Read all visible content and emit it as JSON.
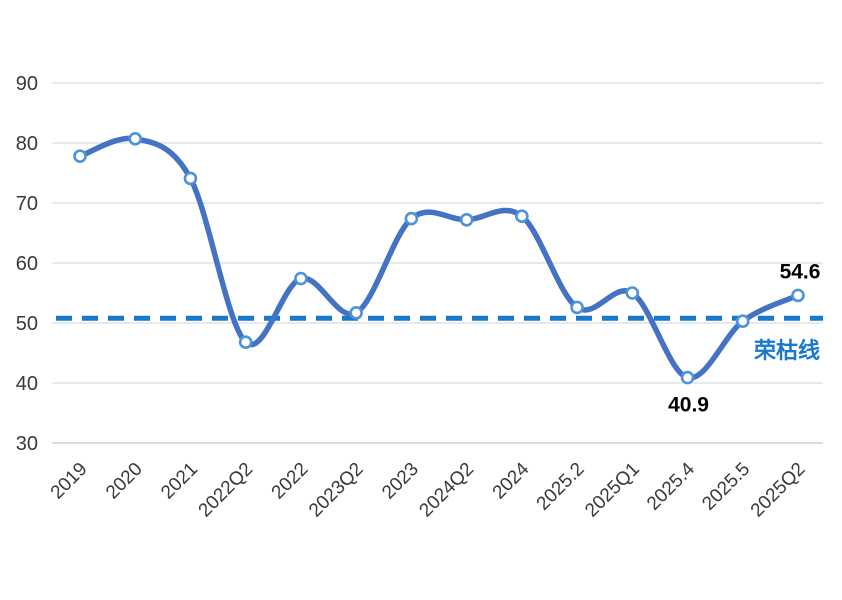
{
  "chart_data": {
    "type": "line",
    "title": "",
    "xlabel": "",
    "ylabel": "",
    "categories": [
      "2019",
      "2020",
      "2021",
      "2022Q2",
      "2022",
      "2023Q2",
      "2023",
      "2024Q2",
      "2024",
      "2025.2",
      "2025Q1",
      "2025.4",
      "2025.5",
      "2025Q2"
    ],
    "values": [
      77.8,
      80.7,
      74.1,
      46.8,
      57.4,
      51.7,
      67.4,
      67.2,
      67.8,
      52.6,
      55.0,
      40.9,
      50.3,
      54.6
    ],
    "smooth": true,
    "marker": "open-circle",
    "legend": false,
    "grid": true,
    "yaxis": {
      "min": 30,
      "max": 90,
      "step": 10,
      "tick_labels": [
        "90",
        "80",
        "70",
        "60",
        "50",
        "40",
        "30"
      ]
    },
    "threshold_line": {
      "value": 50.8,
      "label": "荣枯线",
      "style": "dashed"
    },
    "annotations": [
      {
        "category": "2025.4",
        "text": "40.9",
        "placement": "below"
      },
      {
        "category": "2025Q2",
        "text": "54.6",
        "placement": "above"
      }
    ],
    "colors": {
      "line": "#4472C4",
      "marker_fill": "#ffffff",
      "marker_stroke": "#4E93DA",
      "threshold": "#1878CC",
      "gridline": "#DCDCDC",
      "axis_text": "#3A3A3A",
      "data_label": "#000000",
      "background": "#ffffff"
    }
  }
}
